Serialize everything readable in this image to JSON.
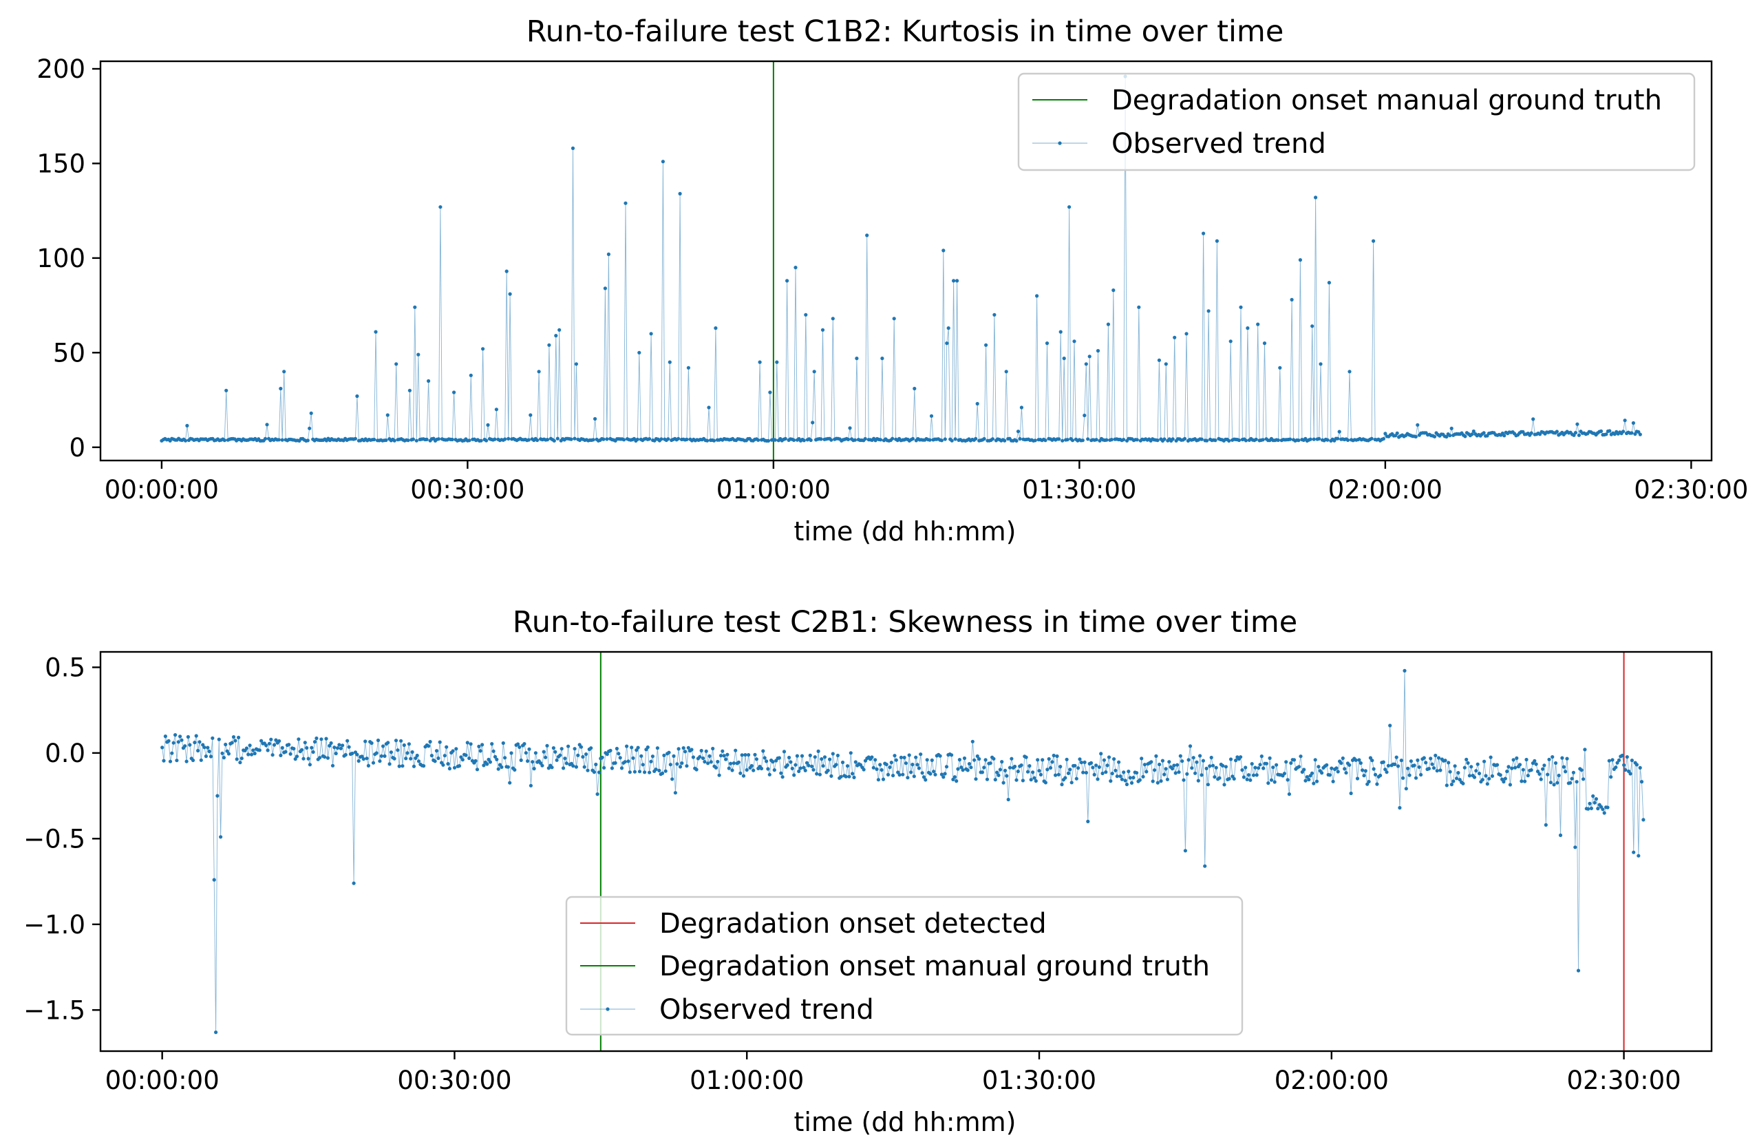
{
  "colors": {
    "series": "#1f77b4",
    "detected": "#d62728",
    "ground_truth": "#008000",
    "axes": "#000000"
  },
  "chart_data": [
    {
      "type": "line",
      "title": "Run-to-failure test C1B2: Kurtosis in time over time",
      "xlabel": "time (dd hh:mm)",
      "ylabel": "",
      "xlim": [
        "-00:06:00",
        "02:32:00"
      ],
      "ylim": [
        -7,
        204
      ],
      "xticks": [
        "00:00:00",
        "00:30:00",
        "01:00:00",
        "01:30:00",
        "02:00:00",
        "02:30:00"
      ],
      "yticks": [
        "0",
        "50",
        "100",
        "150",
        "200"
      ],
      "ytick_values": [
        0,
        50,
        100,
        150,
        200
      ],
      "grid": false,
      "legend_position": "upper right",
      "legend": [
        "Degradation onset manual ground truth",
        "Observed trend"
      ],
      "vlines": [
        {
          "name": "Degradation onset manual ground truth",
          "x": "01:00:00",
          "color": "#008000"
        }
      ],
      "series": [
        {
          "name": "Observed trend",
          "sampling": "one point every 10 s from 00:00:00 to 02:25:00",
          "baseline": "about 3.5 until 02:00:00, rising to about 6-7 after",
          "spikes": [
            [
              "00:06:20",
              30
            ],
            [
              "00:10:20",
              12
            ],
            [
              "00:11:40",
              31
            ],
            [
              "00:12:00",
              40
            ],
            [
              "00:14:40",
              18
            ],
            [
              "00:19:10",
              27
            ],
            [
              "00:21:00",
              61
            ],
            [
              "00:22:10",
              17
            ],
            [
              "00:23:00",
              44
            ],
            [
              "00:24:20",
              30
            ],
            [
              "00:24:50",
              74
            ],
            [
              "00:25:10",
              49
            ],
            [
              "00:26:10",
              35
            ],
            [
              "00:27:20",
              127
            ],
            [
              "00:28:40",
              29
            ],
            [
              "00:30:20",
              38
            ],
            [
              "00:31:30",
              52
            ],
            [
              "00:32:50",
              20
            ],
            [
              "00:33:50",
              93
            ],
            [
              "00:34:10",
              81
            ],
            [
              "00:36:10",
              17
            ],
            [
              "00:37:00",
              40
            ],
            [
              "00:38:00",
              54
            ],
            [
              "00:38:40",
              59
            ],
            [
              "00:39:00",
              62
            ],
            [
              "00:40:20",
              158
            ],
            [
              "00:40:40",
              44
            ],
            [
              "00:42:30",
              15
            ],
            [
              "00:43:30",
              84
            ],
            [
              "00:43:50",
              102
            ],
            [
              "00:45:30",
              129
            ],
            [
              "00:46:50",
              50
            ],
            [
              "00:48:00",
              60
            ],
            [
              "00:49:10",
              151
            ],
            [
              "00:49:50",
              45
            ],
            [
              "00:50:50",
              134
            ],
            [
              "00:51:40",
              42
            ],
            [
              "00:53:40",
              21
            ],
            [
              "00:54:20",
              63
            ],
            [
              "00:58:40",
              45
            ],
            [
              "00:59:40",
              29
            ],
            [
              "01:00:20",
              45
            ],
            [
              "01:01:20",
              88
            ],
            [
              "01:02:10",
              95
            ],
            [
              "01:03:10",
              70
            ],
            [
              "01:04:00",
              40
            ],
            [
              "01:04:50",
              62
            ],
            [
              "01:05:50",
              68
            ],
            [
              "01:08:10",
              47
            ],
            [
              "01:09:10",
              112
            ],
            [
              "01:10:40",
              47
            ],
            [
              "01:11:50",
              68
            ],
            [
              "01:13:50",
              31
            ],
            [
              "01:16:40",
              104
            ],
            [
              "01:17:00",
              55
            ],
            [
              "01:17:10",
              63
            ],
            [
              "01:17:40",
              88
            ],
            [
              "01:18:00",
              88
            ],
            [
              "01:20:00",
              23
            ],
            [
              "01:20:50",
              54
            ],
            [
              "01:21:40",
              70
            ],
            [
              "01:22:50",
              40
            ],
            [
              "01:24:20",
              21
            ],
            [
              "01:25:50",
              80
            ],
            [
              "01:26:50",
              55
            ],
            [
              "01:28:10",
              61
            ],
            [
              "01:28:30",
              47
            ],
            [
              "01:29:00",
              127
            ],
            [
              "01:29:30",
              56
            ],
            [
              "01:30:40",
              44
            ],
            [
              "01:31:00",
              48
            ],
            [
              "01:31:50",
              51
            ],
            [
              "01:32:50",
              65
            ],
            [
              "01:33:20",
              83
            ],
            [
              "01:34:30",
              196
            ],
            [
              "01:35:50",
              74
            ],
            [
              "01:37:50",
              46
            ],
            [
              "01:38:30",
              44
            ],
            [
              "01:39:20",
              58
            ],
            [
              "01:40:30",
              60
            ],
            [
              "01:42:10",
              113
            ],
            [
              "01:42:40",
              72
            ],
            [
              "01:43:30",
              109
            ],
            [
              "01:44:50",
              56
            ],
            [
              "01:45:50",
              74
            ],
            [
              "01:46:30",
              63
            ],
            [
              "01:47:30",
              65
            ],
            [
              "01:48:10",
              55
            ],
            [
              "01:49:40",
              42
            ],
            [
              "01:50:50",
              78
            ],
            [
              "01:51:40",
              99
            ],
            [
              "01:52:50",
              64
            ],
            [
              "01:53:10",
              132
            ],
            [
              "01:53:40",
              44
            ],
            [
              "01:54:30",
              87
            ],
            [
              "01:56:30",
              40
            ],
            [
              "01:58:50",
              109
            ]
          ]
        }
      ]
    },
    {
      "type": "line",
      "title": "Run-to-failure test C2B1: Skewness in time over time",
      "xlabel": "time (dd hh:mm)",
      "ylabel": "",
      "xlim": [
        "-00:06:20",
        "02:39:00"
      ],
      "ylim": [
        -1.74,
        0.59
      ],
      "xticks": [
        "00:00:00",
        "00:30:00",
        "01:00:00",
        "01:30:00",
        "02:00:00",
        "02:30:00"
      ],
      "yticks": [
        "0.5",
        "0.0",
        "−0.5",
        "−1.0",
        "−1.5"
      ],
      "ytick_values": [
        0.5,
        0.0,
        -0.5,
        -1.0,
        -1.5
      ],
      "grid": false,
      "legend_position": "lower center",
      "legend": [
        "Degradation onset detected",
        "Degradation onset manual ground truth",
        "Observed trend"
      ],
      "vlines": [
        {
          "name": "Degradation onset detected",
          "x": "02:30:00",
          "color": "#d62728"
        },
        {
          "name": "Degradation onset manual ground truth",
          "x": "00:45:00",
          "color": "#008000"
        }
      ],
      "series": [
        {
          "name": "Observed trend",
          "sampling": "one point every 10 s from 00:00:00 to 02:32:00",
          "baseline": "about 0.02 at start, drifting down to about -0.10 by 01:30:00",
          "spikes": [
            [
              "00:05:20",
              -0.74
            ],
            [
              "00:05:30",
              -1.63
            ],
            [
              "00:05:40",
              -0.25
            ],
            [
              "00:06:00",
              -0.49
            ],
            [
              "00:19:40",
              -0.76
            ],
            [
              "00:44:40",
              -0.24
            ],
            [
              "01:35:00",
              -0.4
            ],
            [
              "01:45:00",
              -0.57
            ],
            [
              "01:47:00",
              -0.66
            ],
            [
              "02:06:00",
              0.16
            ],
            [
              "02:07:00",
              -0.32
            ],
            [
              "02:07:30",
              0.48
            ],
            [
              "02:22:00",
              -0.42
            ],
            [
              "02:23:30",
              -0.48
            ],
            [
              "02:25:00",
              -0.55
            ],
            [
              "02:25:20",
              -1.27
            ],
            [
              "02:26:00",
              0.02
            ],
            [
              "02:28:00",
              -0.35
            ],
            [
              "02:31:00",
              -0.58
            ],
            [
              "02:31:30",
              -0.6
            ],
            [
              "02:32:00",
              -0.39
            ]
          ]
        }
      ]
    }
  ]
}
